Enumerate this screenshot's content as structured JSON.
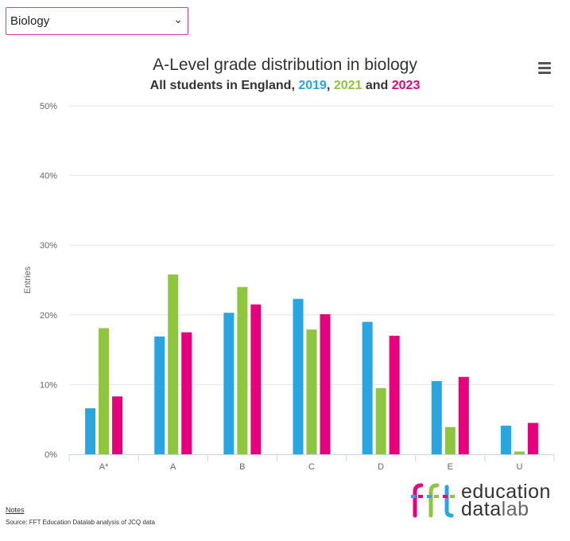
{
  "selector": {
    "value": "Biology"
  },
  "chart_data": {
    "type": "bar",
    "title": "A-Level grade distribution in biology",
    "subtitle": {
      "prefix": "All students in England, ",
      "sep1": ", ",
      "sep2": " and ",
      "years": [
        "2019",
        "2021",
        "2023"
      ]
    },
    "ylabel": "Entries",
    "ylim": [
      0,
      50
    ],
    "yticks": [
      "0%",
      "10%",
      "20%",
      "30%",
      "40%",
      "50%"
    ],
    "categories": [
      "A*",
      "A",
      "B",
      "C",
      "D",
      "E",
      "U"
    ],
    "series": [
      {
        "name": "2019",
        "color": "#29a6e0",
        "values": [
          6.6,
          16.9,
          20.3,
          22.3,
          19.0,
          10.5,
          4.1
        ]
      },
      {
        "name": "2021",
        "color": "#8ec63f",
        "values": [
          18.1,
          25.8,
          24.0,
          17.9,
          9.5,
          3.9,
          0.4
        ]
      },
      {
        "name": "2023",
        "color": "#e5007d",
        "values": [
          8.3,
          17.5,
          21.5,
          20.1,
          17.0,
          11.1,
          4.5
        ]
      }
    ]
  },
  "footer": {
    "notes": "Notes",
    "source": "Source: FFT Education Datalab analysis of JCQ data"
  },
  "logo": {
    "mark": "fft",
    "word1": "education",
    "word2_bold": "data",
    "word2_light": "lab"
  }
}
